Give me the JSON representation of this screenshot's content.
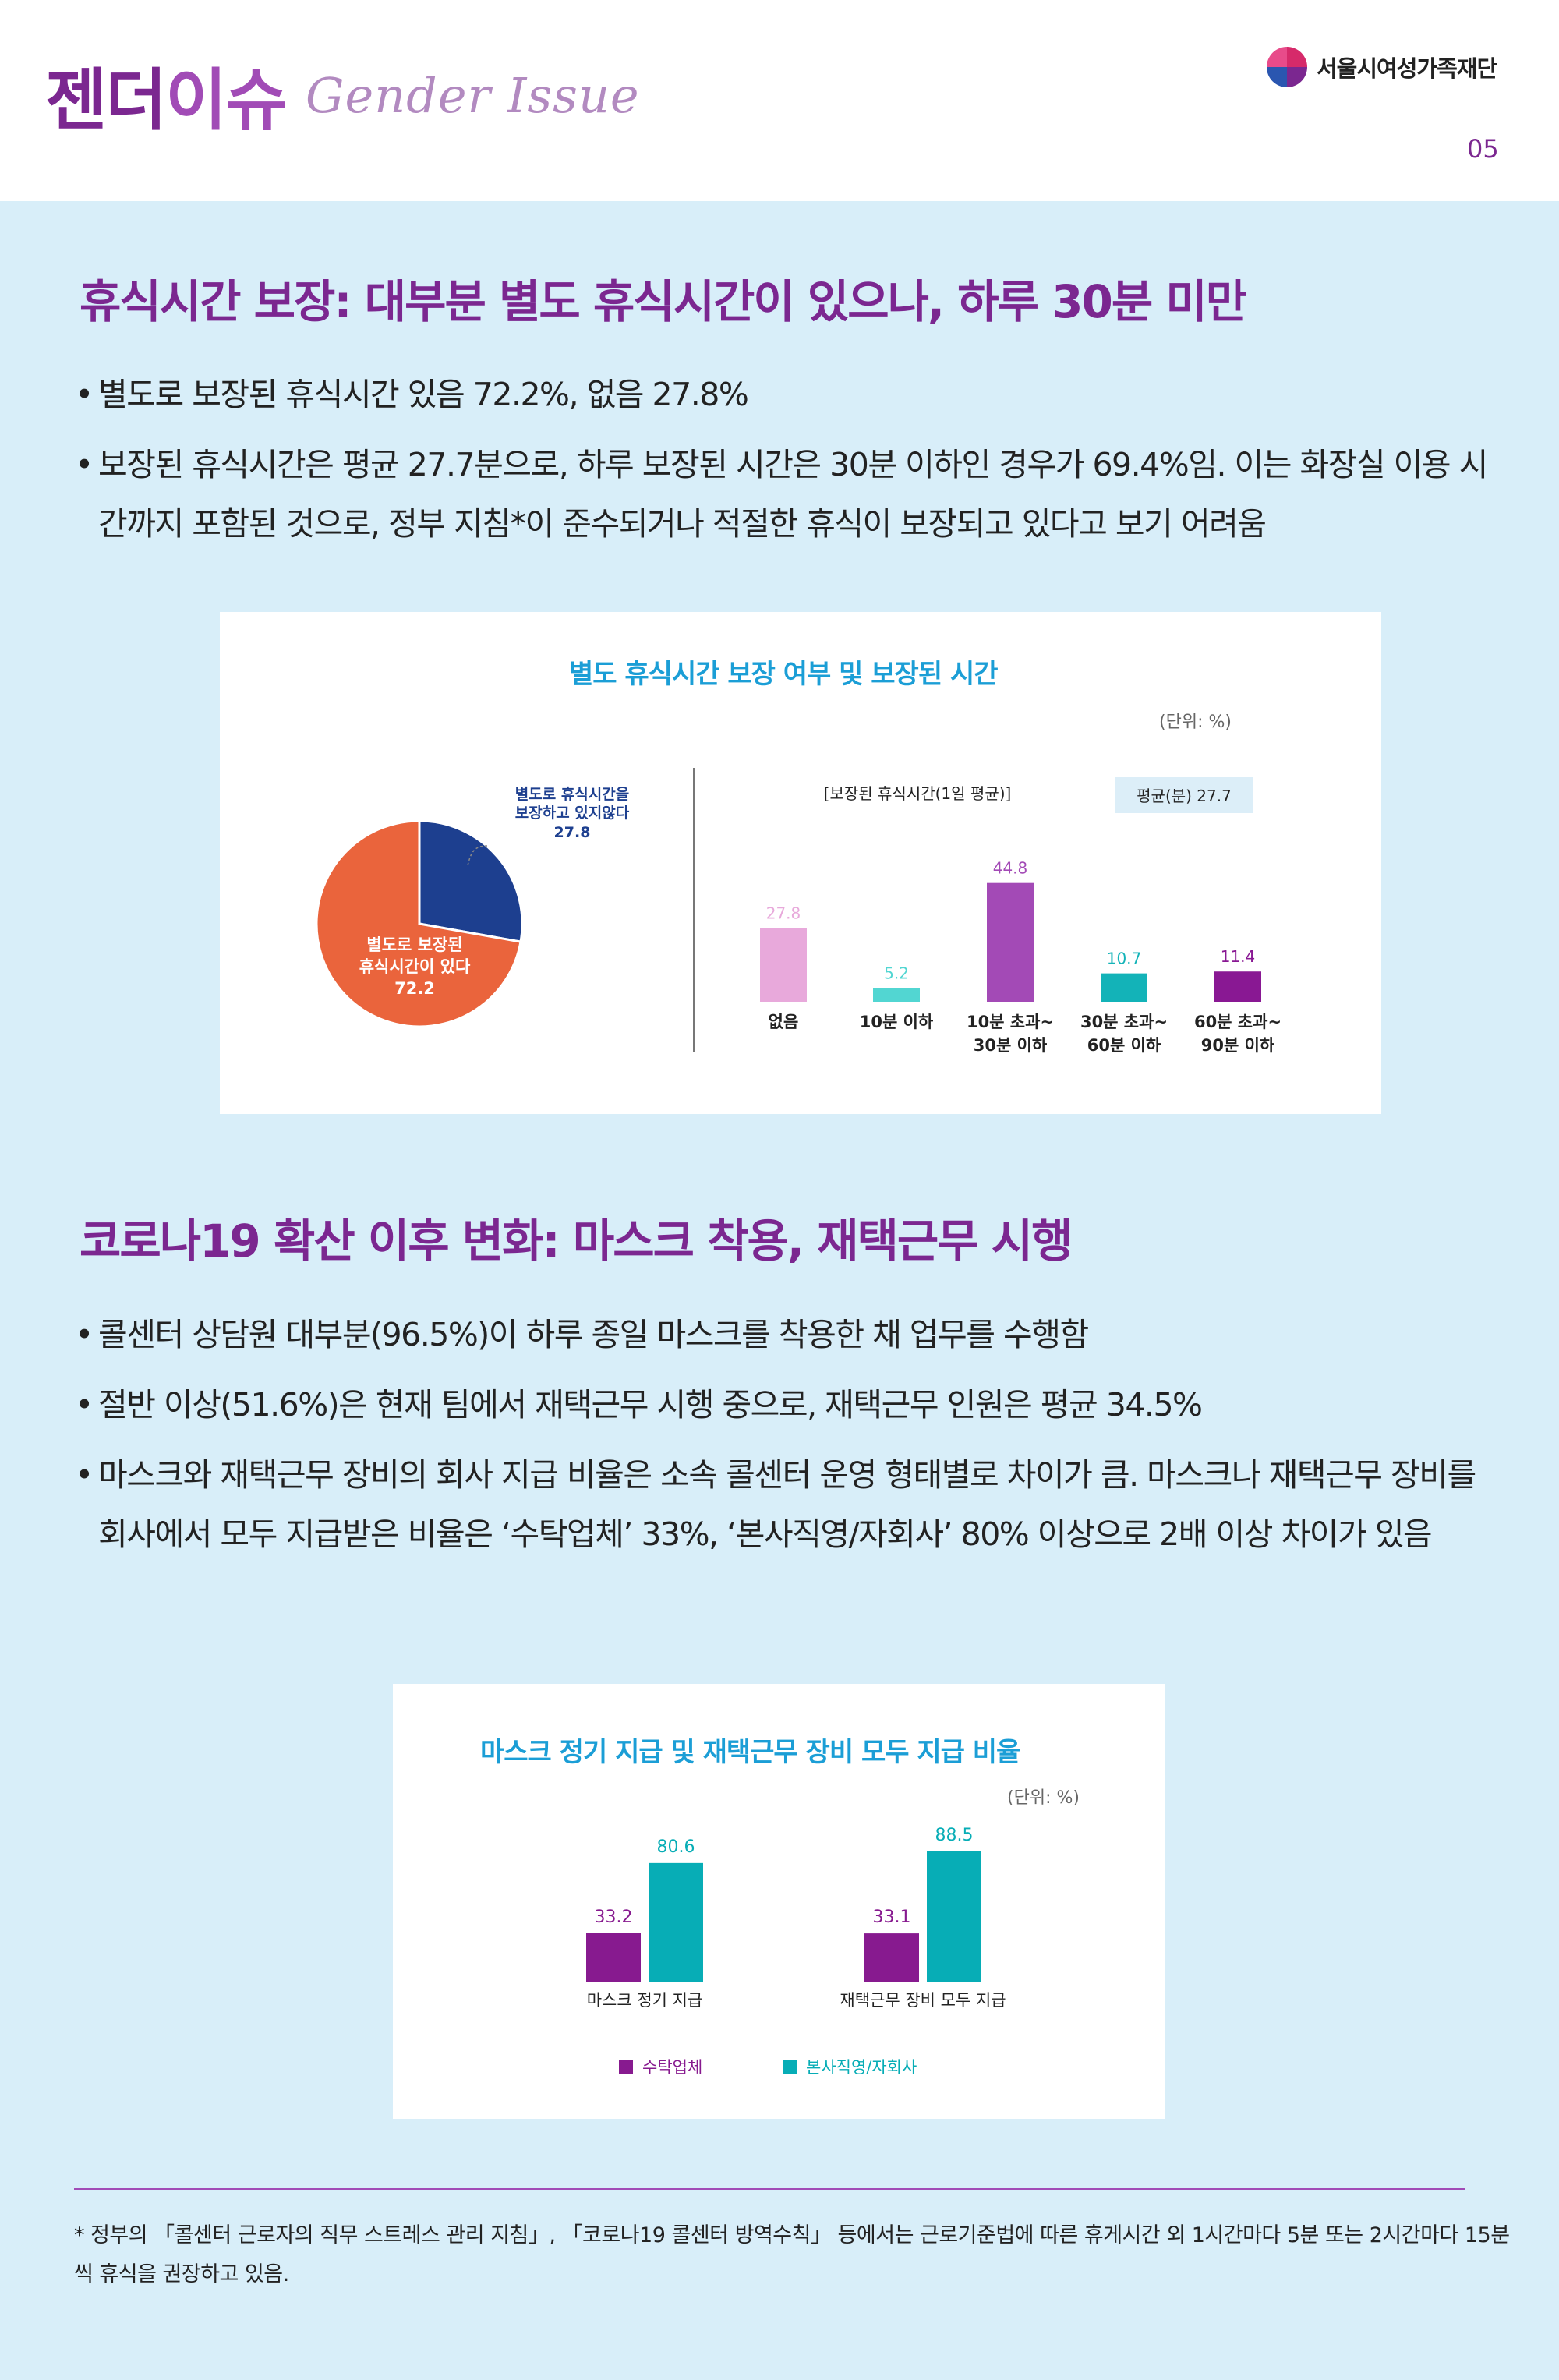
{
  "header": {
    "title_ko_a": "젠더",
    "title_ko_b": "이슈",
    "title_en": "Gender Issue",
    "logo_text": "서울시여성가족재단",
    "page_number": "05",
    "logo_icon": "foundation-logo-icon"
  },
  "section1": {
    "title": "휴식시간 보장: 대부분 별도 휴식시간이 있으나, 하루 30분 미만",
    "bullets": [
      "별도로 보장된 휴식시간 있음 72.2%, 없음 27.8%",
      "보장된 휴식시간은 평균 27.7분으로, 하루 보장된 시간은 30분 이하인 경우가 69.4%임. 이는 화장실 이용 시간까지 포함된 것으로, 정부 지침*이 준수되거나 적절한 휴식이 보장되고 있다고 보기 어려움"
    ]
  },
  "chart1": {
    "title": "별도 휴식시간 보장 여부 및 보장된 시간",
    "unit": "(단위: %)",
    "pie_label_no": [
      "별도로 휴식시간을",
      "보장하고 있지않다",
      "27.8"
    ],
    "pie_label_yes": [
      "별도로 보장된",
      "휴식시간이 있다",
      "72.2"
    ],
    "bar_header": "[보장된 휴식시간(1일 평균)]",
    "avg_box": "평균(분) 27.7"
  },
  "section2": {
    "title": "코로나19 확산 이후 변화: 마스크 착용, 재택근무 시행",
    "bullets": [
      "콜센터 상담원 대부분(96.5%)이 하루 종일 마스크를 착용한 채 업무를 수행함",
      "절반 이상(51.6%)은 현재 팀에서 재택근무 시행 중으로, 재택근무 인원은 평균 34.5%",
      "마스크와 재택근무 장비의 회사 지급 비율은 소속 콜센터 운영 형태별로 차이가 큼. 마스크나 재택근무 장비를 회사에서 모두 지급받은 비율은 ‘수탁업체’ 33%, ‘본사직영/자회사’ 80% 이상으로 2배 이상 차이가 있음"
    ]
  },
  "chart2": {
    "title": "마스크 정기 지급 및 재택근무 장비 모두 지급 비율",
    "unit": "(단위: %)"
  },
  "footnote": "* 정부의 「콜센터 근로자의 직무 스트레스 관리 지침」, 「코로나19 콜센터 방역수칙」 등에서는 근로기준법에 따른 휴게시간 외 1시간마다 5분 또는 2시간마다 15분씩 휴식을 권장하고 있음.",
  "chart_data": [
    {
      "type": "pie",
      "labels": [
        "별도로 휴식시간을 보장하고 있지않다",
        "별도로 보장된 휴식시간이 있다"
      ],
      "values": [
        27.8,
        72.2
      ],
      "colors": [
        "#1d3f8f",
        "#ea643c"
      ]
    },
    {
      "type": "bar",
      "title": "[보장된 휴식시간(1일 평균)]",
      "categories": [
        [
          "없음"
        ],
        [
          "10분 이하"
        ],
        [
          "10분 초과~",
          "30분 이하"
        ],
        [
          "30분 초과~",
          "60분 이하"
        ],
        [
          "60분 초과~",
          "90분 이하"
        ]
      ],
      "values": [
        27.8,
        5.2,
        44.8,
        10.7,
        11.4
      ],
      "value_labels": [
        "27.8",
        "5.2",
        "44.8",
        "10.7",
        "11.4"
      ],
      "colors": [
        "#e8a9db",
        "#52d6d2",
        "#a34ab6",
        "#13b3b8",
        "#891893"
      ],
      "ylim": [
        0,
        50
      ]
    },
    {
      "type": "bar",
      "categories": [
        "마스크 정기 지급",
        "재택근무 장비 모두 지급"
      ],
      "series": [
        {
          "name": "수탁업체",
          "values": [
            33.2,
            33.1
          ],
          "value_labels": [
            "33.2",
            "33.1"
          ],
          "color": "#871a8f"
        },
        {
          "name": "본사직영/자회사",
          "values": [
            80.6,
            88.5
          ],
          "value_labels": [
            "80.6",
            "88.5"
          ],
          "color": "#07adb6"
        }
      ],
      "legend": "bottom-center",
      "ylim": [
        0,
        100
      ]
    }
  ]
}
